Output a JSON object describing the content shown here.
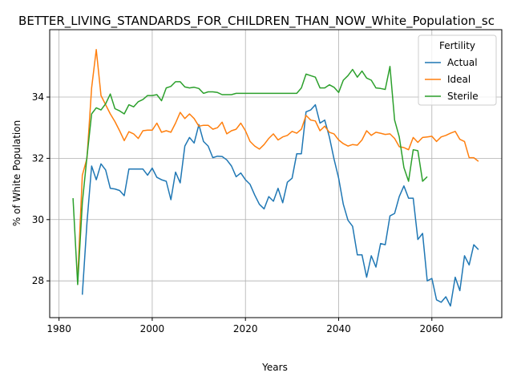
{
  "chart_data": {
    "type": "line",
    "title": "BETTER_LIVING_STANDARDS_FOR_CHILDREN_THAN_NOW_White_Population_sc",
    "xlabel": "Years",
    "ylabel": "% of White Population",
    "xlim": [
      1978,
      2075
    ],
    "ylim": [
      26.8,
      36.2
    ],
    "xticks": [
      1980,
      2000,
      2020,
      2040,
      2060
    ],
    "yticks": [
      28,
      30,
      32,
      34
    ],
    "grid": true,
    "legend": {
      "title": "Fertility",
      "position": "top-right"
    },
    "series": [
      {
        "name": "Actual",
        "color": "#1f77b4",
        "points": [
          [
            1985,
            27.55
          ],
          [
            1986,
            29.9
          ],
          [
            1987,
            31.75
          ],
          [
            1988,
            31.3
          ],
          [
            1989,
            31.82
          ],
          [
            1990,
            31.62
          ],
          [
            1991,
            31.02
          ],
          [
            1992,
            31.0
          ],
          [
            1993,
            30.95
          ],
          [
            1994,
            30.78
          ],
          [
            1995,
            31.65
          ],
          [
            1996,
            31.65
          ],
          [
            1997,
            31.65
          ],
          [
            1998,
            31.65
          ],
          [
            1999,
            31.45
          ],
          [
            2000,
            31.68
          ],
          [
            2001,
            31.38
          ],
          [
            2002,
            31.3
          ],
          [
            2003,
            31.25
          ],
          [
            2004,
            30.65
          ],
          [
            2005,
            31.55
          ],
          [
            2006,
            31.2
          ],
          [
            2007,
            32.4
          ],
          [
            2008,
            32.68
          ],
          [
            2009,
            32.5
          ],
          [
            2010,
            33.1
          ],
          [
            2011,
            32.55
          ],
          [
            2012,
            32.4
          ],
          [
            2013,
            32.02
          ],
          [
            2014,
            32.07
          ],
          [
            2015,
            32.06
          ],
          [
            2016,
            31.95
          ],
          [
            2017,
            31.75
          ],
          [
            2018,
            31.4
          ],
          [
            2019,
            31.52
          ],
          [
            2020,
            31.3
          ],
          [
            2021,
            31.15
          ],
          [
            2022,
            30.8
          ],
          [
            2023,
            30.5
          ],
          [
            2024,
            30.35
          ],
          [
            2025,
            30.75
          ],
          [
            2026,
            30.6
          ],
          [
            2027,
            31.02
          ],
          [
            2028,
            30.55
          ],
          [
            2029,
            31.22
          ],
          [
            2030,
            31.35
          ],
          [
            2031,
            32.15
          ],
          [
            2032,
            32.15
          ],
          [
            2033,
            33.52
          ],
          [
            2034,
            33.58
          ],
          [
            2035,
            33.75
          ],
          [
            2036,
            33.15
          ],
          [
            2037,
            33.25
          ],
          [
            2038,
            32.7
          ],
          [
            2039,
            31.98
          ],
          [
            2040,
            31.35
          ],
          [
            2041,
            30.5
          ],
          [
            2042,
            29.98
          ],
          [
            2043,
            29.78
          ],
          [
            2044,
            28.85
          ],
          [
            2045,
            28.85
          ],
          [
            2046,
            28.12
          ],
          [
            2047,
            28.82
          ],
          [
            2048,
            28.45
          ],
          [
            2049,
            29.22
          ],
          [
            2050,
            29.18
          ],
          [
            2051,
            30.12
          ],
          [
            2052,
            30.2
          ],
          [
            2053,
            30.75
          ],
          [
            2054,
            31.1
          ],
          [
            2055,
            30.7
          ],
          [
            2056,
            30.7
          ],
          [
            2057,
            29.35
          ],
          [
            2058,
            29.55
          ],
          [
            2059,
            28.0
          ],
          [
            2060,
            28.08
          ],
          [
            2061,
            27.38
          ],
          [
            2062,
            27.3
          ],
          [
            2063,
            27.48
          ],
          [
            2064,
            27.18
          ],
          [
            2065,
            28.12
          ],
          [
            2066,
            27.68
          ],
          [
            2067,
            28.82
          ],
          [
            2068,
            28.52
          ],
          [
            2069,
            29.18
          ],
          [
            2070,
            29.02
          ]
        ]
      },
      {
        "name": "Ideal",
        "color": "#ff7f0e",
        "points": [
          [
            1984,
            28.05
          ],
          [
            1985,
            31.45
          ],
          [
            1986,
            32.0
          ],
          [
            1987,
            34.3
          ],
          [
            1988,
            35.55
          ],
          [
            1989,
            34.05
          ],
          [
            1990,
            33.75
          ],
          [
            1991,
            33.45
          ],
          [
            1992,
            33.2
          ],
          [
            1993,
            32.9
          ],
          [
            1994,
            32.58
          ],
          [
            1995,
            32.87
          ],
          [
            1996,
            32.8
          ],
          [
            1997,
            32.65
          ],
          [
            1998,
            32.9
          ],
          [
            1999,
            32.92
          ],
          [
            2000,
            32.92
          ],
          [
            2001,
            33.15
          ],
          [
            2002,
            32.85
          ],
          [
            2003,
            32.9
          ],
          [
            2004,
            32.85
          ],
          [
            2005,
            33.15
          ],
          [
            2006,
            33.5
          ],
          [
            2007,
            33.3
          ],
          [
            2008,
            33.45
          ],
          [
            2009,
            33.3
          ],
          [
            2010,
            33.05
          ],
          [
            2011,
            33.08
          ],
          [
            2012,
            33.08
          ],
          [
            2013,
            32.95
          ],
          [
            2014,
            33.0
          ],
          [
            2015,
            33.18
          ],
          [
            2016,
            32.8
          ],
          [
            2017,
            32.9
          ],
          [
            2018,
            32.95
          ],
          [
            2019,
            33.15
          ],
          [
            2020,
            32.9
          ],
          [
            2021,
            32.55
          ],
          [
            2022,
            32.4
          ],
          [
            2023,
            32.3
          ],
          [
            2024,
            32.45
          ],
          [
            2025,
            32.65
          ],
          [
            2026,
            32.8
          ],
          [
            2027,
            32.6
          ],
          [
            2028,
            32.7
          ],
          [
            2029,
            32.75
          ],
          [
            2030,
            32.88
          ],
          [
            2031,
            32.82
          ],
          [
            2032,
            32.95
          ],
          [
            2033,
            33.4
          ],
          [
            2034,
            33.25
          ],
          [
            2035,
            33.22
          ],
          [
            2036,
            32.9
          ],
          [
            2037,
            33.05
          ],
          [
            2038,
            32.85
          ],
          [
            2039,
            32.8
          ],
          [
            2040,
            32.6
          ],
          [
            2041,
            32.48
          ],
          [
            2042,
            32.4
          ],
          [
            2043,
            32.45
          ],
          [
            2044,
            32.43
          ],
          [
            2045,
            32.6
          ],
          [
            2046,
            32.9
          ],
          [
            2047,
            32.75
          ],
          [
            2048,
            32.85
          ],
          [
            2049,
            32.82
          ],
          [
            2050,
            32.78
          ],
          [
            2051,
            32.8
          ],
          [
            2052,
            32.65
          ],
          [
            2053,
            32.38
          ],
          [
            2054,
            32.35
          ],
          [
            2055,
            32.28
          ],
          [
            2056,
            32.68
          ],
          [
            2057,
            32.52
          ],
          [
            2058,
            32.68
          ],
          [
            2059,
            32.7
          ],
          [
            2060,
            32.72
          ],
          [
            2061,
            32.55
          ],
          [
            2062,
            32.7
          ],
          [
            2063,
            32.75
          ],
          [
            2064,
            32.82
          ],
          [
            2065,
            32.88
          ],
          [
            2066,
            32.62
          ],
          [
            2067,
            32.55
          ],
          [
            2068,
            32.02
          ],
          [
            2069,
            32.02
          ],
          [
            2070,
            31.9
          ]
        ]
      },
      {
        "name": "Sterile",
        "color": "#2ca02c",
        "points": [
          [
            1983,
            30.7
          ],
          [
            1984,
            27.88
          ],
          [
            1985,
            30.55
          ],
          [
            1986,
            32.05
          ],
          [
            1987,
            33.45
          ],
          [
            1988,
            33.65
          ],
          [
            1989,
            33.58
          ],
          [
            1990,
            33.78
          ],
          [
            1991,
            34.1
          ],
          [
            1992,
            33.62
          ],
          [
            1993,
            33.55
          ],
          [
            1994,
            33.45
          ],
          [
            1995,
            33.75
          ],
          [
            1996,
            33.68
          ],
          [
            1997,
            33.85
          ],
          [
            1998,
            33.92
          ],
          [
            1999,
            34.05
          ],
          [
            2000,
            34.05
          ],
          [
            2001,
            34.08
          ],
          [
            2002,
            33.88
          ],
          [
            2003,
            34.3
          ],
          [
            2004,
            34.35
          ],
          [
            2005,
            34.5
          ],
          [
            2006,
            34.5
          ],
          [
            2007,
            34.33
          ],
          [
            2008,
            34.3
          ],
          [
            2009,
            34.32
          ],
          [
            2010,
            34.28
          ],
          [
            2011,
            34.12
          ],
          [
            2012,
            34.17
          ],
          [
            2013,
            34.17
          ],
          [
            2014,
            34.15
          ],
          [
            2015,
            34.08
          ],
          [
            2016,
            34.08
          ],
          [
            2017,
            34.08
          ],
          [
            2018,
            34.12
          ],
          [
            2019,
            34.12
          ],
          [
            2020,
            34.12
          ],
          [
            2021,
            34.12
          ],
          [
            2022,
            34.12
          ],
          [
            2023,
            34.12
          ],
          [
            2024,
            34.12
          ],
          [
            2025,
            34.12
          ],
          [
            2026,
            34.12
          ],
          [
            2027,
            34.12
          ],
          [
            2028,
            34.12
          ],
          [
            2029,
            34.12
          ],
          [
            2030,
            34.12
          ],
          [
            2031,
            34.12
          ],
          [
            2032,
            34.3
          ],
          [
            2033,
            34.75
          ],
          [
            2034,
            34.7
          ],
          [
            2035,
            34.65
          ],
          [
            2036,
            34.3
          ],
          [
            2037,
            34.3
          ],
          [
            2038,
            34.4
          ],
          [
            2039,
            34.32
          ],
          [
            2040,
            34.15
          ],
          [
            2041,
            34.55
          ],
          [
            2042,
            34.7
          ],
          [
            2043,
            34.9
          ],
          [
            2044,
            34.65
          ],
          [
            2045,
            34.85
          ],
          [
            2046,
            34.62
          ],
          [
            2047,
            34.55
          ],
          [
            2048,
            34.3
          ],
          [
            2049,
            34.28
          ],
          [
            2050,
            34.25
          ],
          [
            2051,
            35.0
          ],
          [
            2052,
            33.25
          ],
          [
            2053,
            32.7
          ],
          [
            2054,
            31.7
          ],
          [
            2055,
            31.25
          ],
          [
            2056,
            32.28
          ],
          [
            2057,
            32.25
          ],
          [
            2058,
            31.25
          ],
          [
            2059,
            31.4
          ]
        ]
      }
    ]
  }
}
